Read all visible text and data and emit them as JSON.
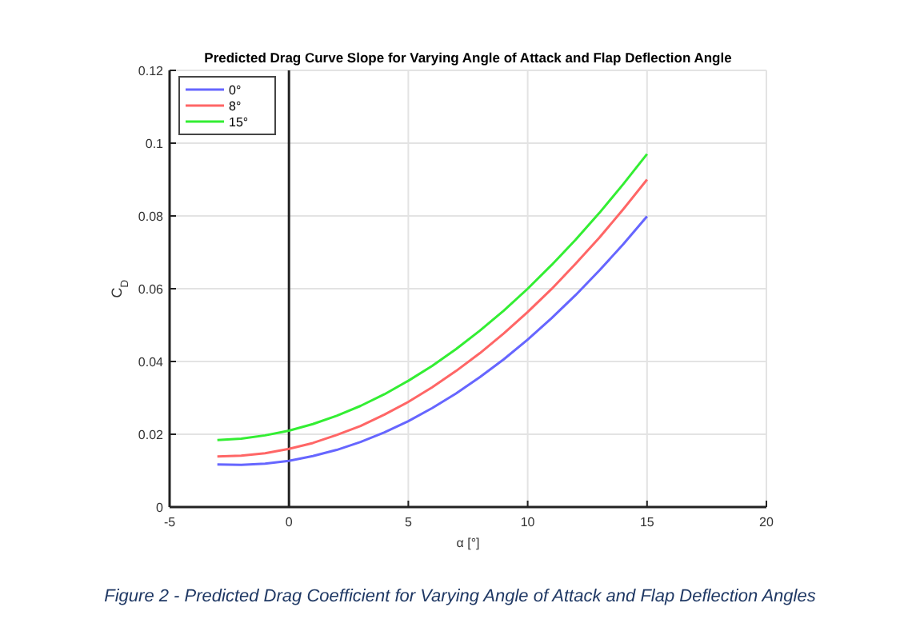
{
  "chart_data": {
    "type": "line",
    "title": "Predicted Drag Curve Slope for Varying Angle of Attack and Flap Deflection Angle",
    "xlabel": "α [°]",
    "ylabel": "C$_{D}$",
    "x": [
      -3,
      -2,
      -1,
      0,
      1,
      2,
      3,
      4,
      5,
      6,
      7,
      8,
      9,
      10,
      11,
      12,
      13,
      14,
      15
    ],
    "series": [
      {
        "name": "0°",
        "color": "#6666ff",
        "values": [
          0.0117,
          0.0116,
          0.0119,
          0.0127,
          0.014,
          0.0157,
          0.0179,
          0.0205,
          0.0236,
          0.0272,
          0.0312,
          0.0357,
          0.0406,
          0.046,
          0.0519,
          0.0582,
          0.065,
          0.0722,
          0.0799
        ]
      },
      {
        "name": "8°",
        "color": "#ff6666",
        "values": [
          0.0139,
          0.0141,
          0.0148,
          0.016,
          0.0176,
          0.0198,
          0.0223,
          0.0254,
          0.0289,
          0.0329,
          0.0374,
          0.0423,
          0.0477,
          0.0536,
          0.0599,
          0.0668,
          0.074,
          0.0818,
          0.09
        ]
      },
      {
        "name": "15°",
        "color": "#33ee33",
        "values": [
          0.0184,
          0.0188,
          0.0197,
          0.021,
          0.0228,
          0.0251,
          0.0278,
          0.031,
          0.0347,
          0.0388,
          0.0434,
          0.0485,
          0.054,
          0.06,
          0.0665,
          0.0734,
          0.0808,
          0.0887,
          0.097
        ]
      }
    ],
    "xlim": [
      -5,
      20
    ],
    "xticks": [
      -5,
      0,
      5,
      10,
      15,
      20
    ],
    "ylim": [
      0,
      0.12
    ],
    "yticks": [
      0,
      0.02,
      0.04,
      0.06,
      0.08,
      0.1,
      0.12
    ],
    "ref_lines": [
      {
        "axis": "x",
        "value": 0,
        "color": "#222222"
      }
    ],
    "grid": true,
    "legend": "top left",
    "line_style": "solid",
    "marker": "none",
    "annotations": [
      "Figure 2 - Predicted Drag Coefficient for Varying Angle of Attack and Flap Deflection Angles"
    ]
  }
}
